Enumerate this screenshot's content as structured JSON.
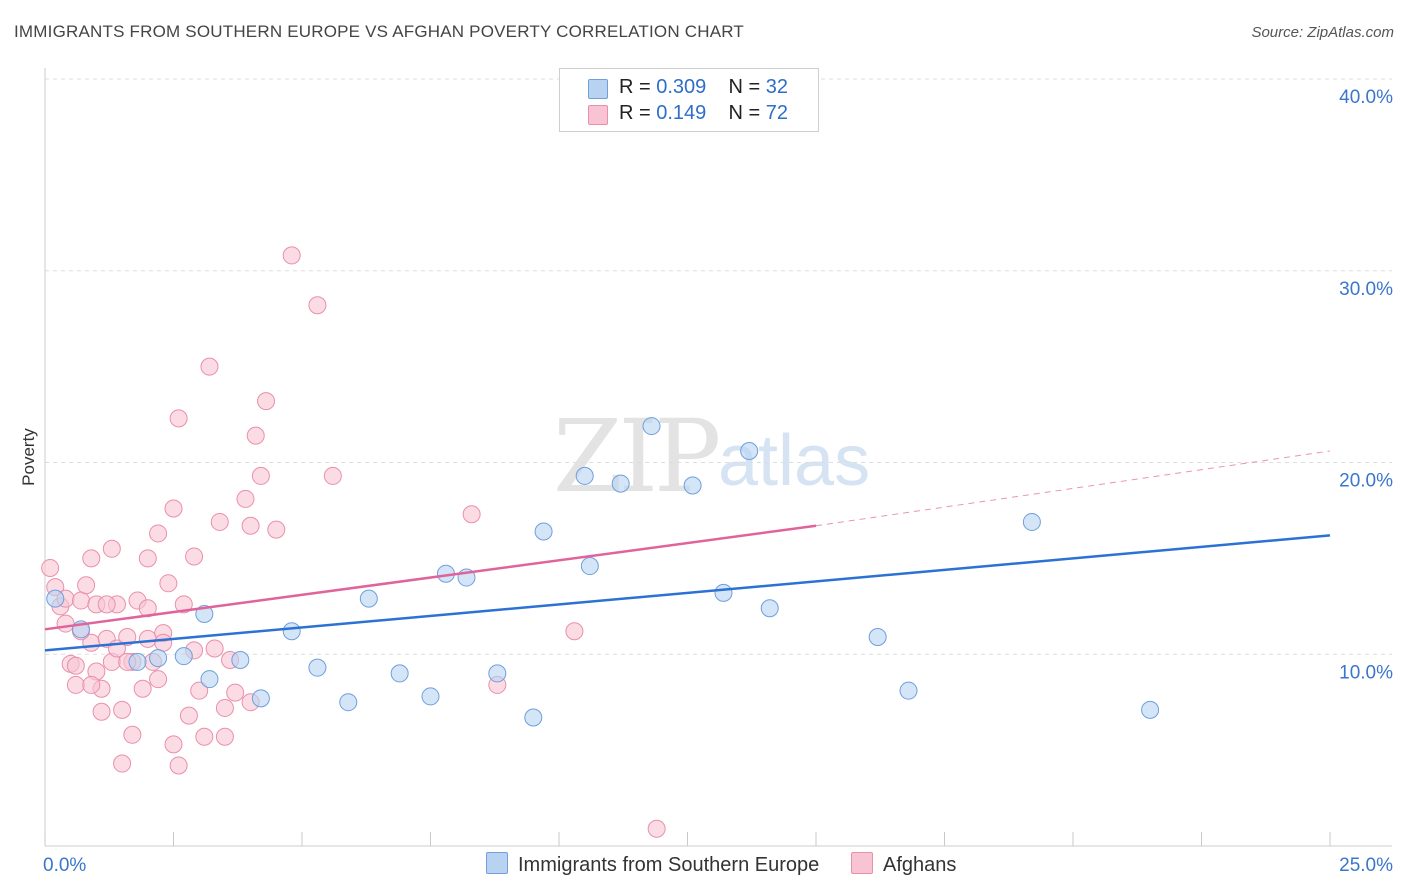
{
  "title": "IMMIGRANTS FROM SOUTHERN EUROPE VS AFGHAN POVERTY CORRELATION CHART",
  "source": "Source: ZipAtlas.com",
  "watermark": {
    "zip": "ZIP",
    "atlas": "atlas"
  },
  "colors": {
    "blue_fill": "#b8d3f2",
    "blue_stroke": "#6f9fdc",
    "blue_line": "#2c72d3",
    "pink_fill": "#f8c4d3",
    "pink_stroke": "#ea8fab",
    "pink_line": "#e0649b",
    "tick_label": "#3a76cc",
    "grid": "#dddddd"
  },
  "legend": {
    "rows": [
      {
        "r_label": "R = ",
        "r_value": "0.309",
        "n_label": "N = ",
        "n_value": "32",
        "color": "#b8d3f2",
        "border": "#6f9fdc"
      },
      {
        "r_label": "R = ",
        "r_value": " 0.149",
        "n_label": "N = ",
        "n_value": "72",
        "color": "#f8c4d3",
        "border": "#ea8fab"
      }
    ]
  },
  "bottom_legend": [
    {
      "label": "Immigrants from Southern Europe",
      "color": "#b8d3f2",
      "border": "#6f9fdc"
    },
    {
      "label": "Afghans",
      "color": "#f8c4d3",
      "border": "#ea8fab"
    }
  ],
  "chart_data": {
    "type": "scatter",
    "title": "IMMIGRANTS FROM SOUTHERN EUROPE VS AFGHAN POVERTY CORRELATION CHART",
    "xlabel": "",
    "ylabel": "Poverty",
    "xlim": [
      0,
      25
    ],
    "ylim": [
      0,
      40
    ],
    "x_tick_labels": [
      {
        "value": 0,
        "label": "0.0%"
      },
      {
        "value": 25,
        "label": "25.0%"
      }
    ],
    "y_tick_labels": [
      {
        "value": 10,
        "label": "10.0%"
      },
      {
        "value": 20,
        "label": "20.0%"
      },
      {
        "value": 30,
        "label": "30.0%"
      },
      {
        "value": 40,
        "label": "40.0%"
      }
    ],
    "grid": "horizontal dashed",
    "legend_position": "top-center",
    "series": [
      {
        "name": "Immigrants from Southern Europe",
        "color": "#b8d3f2",
        "stats": {
          "R": 0.309,
          "N": 32
        },
        "points": [
          [
            0.2,
            12.9
          ],
          [
            0.7,
            11.3
          ],
          [
            1.8,
            9.6
          ],
          [
            2.2,
            9.8
          ],
          [
            2.7,
            9.9
          ],
          [
            3.1,
            12.1
          ],
          [
            3.2,
            8.7
          ],
          [
            3.8,
            9.7
          ],
          [
            4.2,
            7.7
          ],
          [
            4.8,
            11.2
          ],
          [
            5.3,
            9.3
          ],
          [
            5.9,
            7.5
          ],
          [
            6.3,
            12.9
          ],
          [
            6.9,
            9.0
          ],
          [
            7.5,
            7.8
          ],
          [
            7.8,
            14.2
          ],
          [
            8.2,
            14.0
          ],
          [
            8.8,
            9.0
          ],
          [
            9.5,
            6.7
          ],
          [
            9.7,
            16.4
          ],
          [
            10.5,
            19.3
          ],
          [
            10.6,
            14.6
          ],
          [
            11.2,
            18.9
          ],
          [
            11.8,
            21.9
          ],
          [
            12.6,
            18.8
          ],
          [
            13.2,
            13.2
          ],
          [
            13.7,
            20.6
          ],
          [
            14.1,
            12.4
          ],
          [
            16.2,
            10.9
          ],
          [
            16.8,
            8.1
          ],
          [
            19.2,
            16.9
          ],
          [
            21.5,
            7.1
          ]
        ],
        "trend": {
          "x0": 0,
          "y0": 10.2,
          "x1": 25,
          "y1": 16.2
        }
      },
      {
        "name": "Afghans",
        "color": "#f8c4d3",
        "stats": {
          "R": 0.149,
          "N": 72
        },
        "points": [
          [
            0.1,
            14.5
          ],
          [
            0.2,
            13.5
          ],
          [
            0.3,
            12.5
          ],
          [
            0.4,
            12.9
          ],
          [
            0.4,
            11.6
          ],
          [
            0.5,
            9.5
          ],
          [
            0.6,
            8.4
          ],
          [
            0.6,
            9.4
          ],
          [
            0.7,
            12.8
          ],
          [
            0.8,
            13.6
          ],
          [
            0.9,
            10.6
          ],
          [
            0.9,
            15.0
          ],
          [
            1.0,
            12.6
          ],
          [
            1.0,
            9.1
          ],
          [
            1.1,
            8.2
          ],
          [
            1.1,
            7.0
          ],
          [
            1.2,
            10.8
          ],
          [
            1.3,
            9.6
          ],
          [
            1.3,
            15.5
          ],
          [
            1.4,
            10.3
          ],
          [
            1.4,
            12.6
          ],
          [
            1.5,
            7.1
          ],
          [
            1.5,
            4.3
          ],
          [
            1.6,
            10.9
          ],
          [
            1.7,
            5.8
          ],
          [
            1.7,
            9.6
          ],
          [
            1.8,
            12.8
          ],
          [
            1.9,
            8.2
          ],
          [
            2.0,
            10.8
          ],
          [
            2.0,
            15.0
          ],
          [
            2.1,
            9.6
          ],
          [
            2.2,
            16.3
          ],
          [
            2.2,
            8.7
          ],
          [
            2.3,
            11.1
          ],
          [
            2.4,
            13.7
          ],
          [
            2.5,
            17.6
          ],
          [
            2.5,
            5.3
          ],
          [
            2.6,
            22.3
          ],
          [
            2.6,
            4.2
          ],
          [
            2.7,
            12.6
          ],
          [
            2.8,
            6.8
          ],
          [
            2.9,
            10.2
          ],
          [
            2.9,
            15.1
          ],
          [
            3.0,
            8.1
          ],
          [
            3.1,
            5.7
          ],
          [
            3.2,
            25.0
          ],
          [
            3.3,
            10.3
          ],
          [
            3.4,
            16.9
          ],
          [
            3.5,
            5.7
          ],
          [
            3.5,
            7.2
          ],
          [
            3.6,
            9.7
          ],
          [
            3.7,
            8.0
          ],
          [
            3.9,
            18.1
          ],
          [
            4.0,
            16.7
          ],
          [
            4.0,
            7.5
          ],
          [
            4.1,
            21.4
          ],
          [
            4.2,
            19.3
          ],
          [
            4.3,
            23.2
          ],
          [
            4.5,
            16.5
          ],
          [
            4.8,
            30.8
          ],
          [
            5.3,
            28.2
          ],
          [
            5.6,
            19.3
          ],
          [
            8.3,
            17.3
          ],
          [
            8.8,
            8.4
          ],
          [
            10.3,
            11.2
          ],
          [
            11.9,
            0.9
          ],
          [
            0.7,
            11.2
          ],
          [
            1.2,
            12.6
          ],
          [
            2.0,
            12.4
          ],
          [
            2.3,
            10.6
          ],
          [
            1.6,
            9.6
          ],
          [
            0.9,
            8.4
          ]
        ],
        "trend": {
          "x0": 0,
          "y0": 11.3,
          "x1": 15.0,
          "y1": 16.7
        },
        "trend_extension": {
          "x0": 15.0,
          "y0": 16.7,
          "x1": 25,
          "y1": 20.6
        }
      }
    ]
  }
}
